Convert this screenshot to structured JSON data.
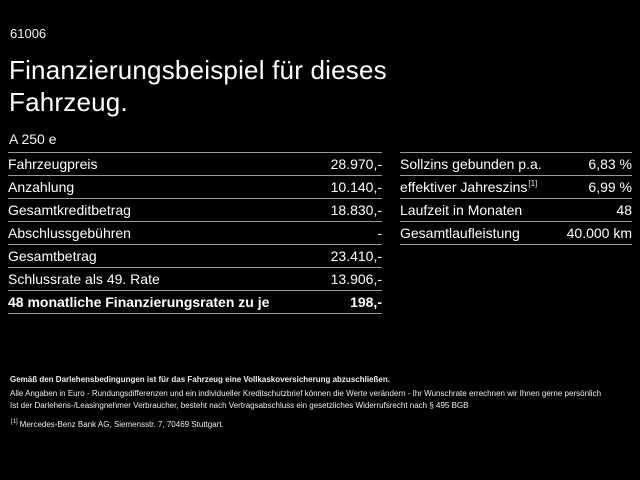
{
  "page": {
    "code": "61006",
    "title_line1": "Finanzierungsbeispiel für dieses",
    "title_line2": "Fahrzeug.",
    "model": "A 250 e"
  },
  "left_table": {
    "rows": [
      {
        "label": "Fahrzeugpreis",
        "value": "28.970,-"
      },
      {
        "label": "Anzahlung",
        "value": "10.140,-"
      },
      {
        "label": "Gesamtkreditbetrag",
        "value": "18.830,-"
      },
      {
        "label": "Abschlussgebühren",
        "value": "-"
      },
      {
        "label": "Gesamtbetrag",
        "value": "23.410,-"
      },
      {
        "label": "Schlussrate als 49. Rate",
        "value": "13.906,-"
      },
      {
        "label": "48 monatliche Finanzierungsraten zu je",
        "value": "198,-"
      }
    ]
  },
  "right_table": {
    "rows": [
      {
        "label": "Sollzins gebunden p.a.",
        "value": "6,83 %"
      },
      {
        "label": "effektiver Jahreszins",
        "sup": "[1]",
        "value": "6,99 %"
      },
      {
        "label": "Laufzeit in Monaten",
        "value": "48"
      },
      {
        "label": "Gesamtlaufleistung",
        "value": "40.000 km"
      }
    ]
  },
  "footer": {
    "bold_note": "Gemäß den Darlehensbedingungen ist für das Fahrzeug eine Vollkaskoversicherung abzuschließen.",
    "note1": "Alle Angaben in Euro - Rundungsdifferenzen und ein individueller Kreditschutzbrief können die Werte verändern - Ihr Wunschrate errechnen wir Ihnen gerne persönlich",
    "note2": "Ist der Darlehens-/Leasingnehmer Verbraucher, besteht nach Vertragsabschluss ein gesetzliches Widerrufsrecht nach § 495 BGB",
    "footnote_marker": "[1]",
    "footnote": "Mercedes-Benz Bank AG, Siemensstr. 7, 70469 Stuttgart."
  },
  "colors": {
    "background": "#000000",
    "text": "#ffffff",
    "divider": "#9a9a9a"
  }
}
